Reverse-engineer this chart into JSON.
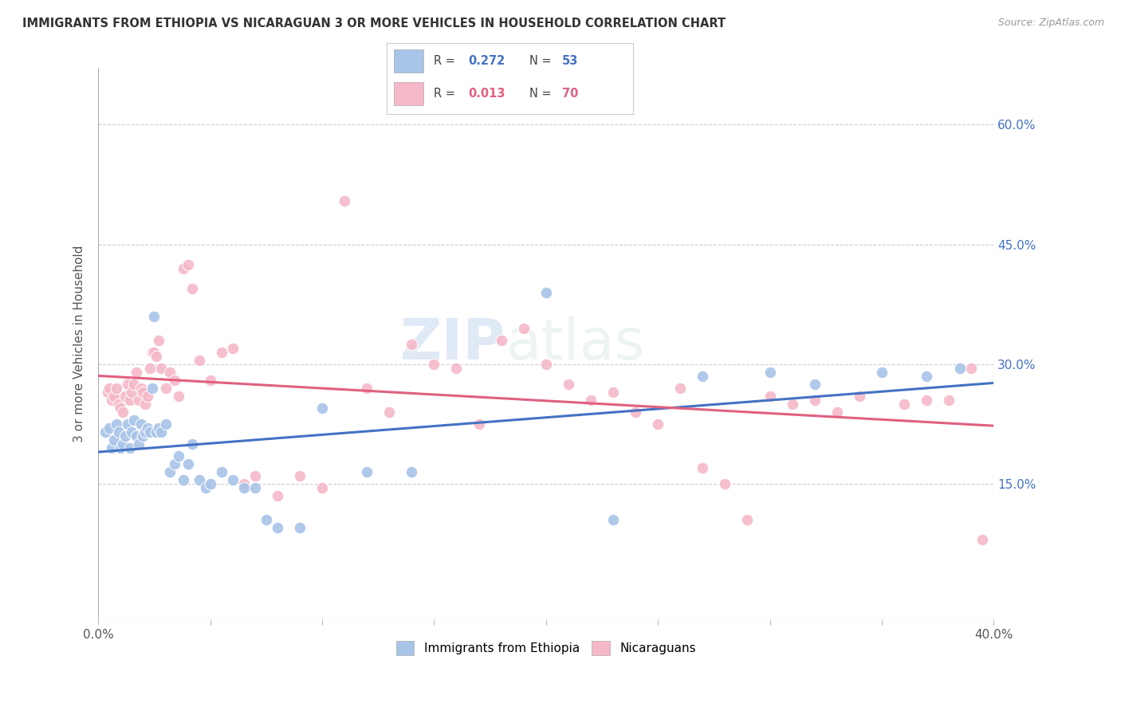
{
  "title": "IMMIGRANTS FROM ETHIOPIA VS NICARAGUAN 3 OR MORE VEHICLES IN HOUSEHOLD CORRELATION CHART",
  "source": "Source: ZipAtlas.com",
  "ylabel": "3 or more Vehicles in Household",
  "ytick_values": [
    0.15,
    0.3,
    0.45,
    0.6
  ],
  "xlim": [
    0.0,
    0.4
  ],
  "ylim": [
    -0.02,
    0.67
  ],
  "legend1_R": "0.272",
  "legend1_N": "53",
  "legend2_R": "0.013",
  "legend2_N": "70",
  "blue_color": "#a8c4e8",
  "pink_color": "#f5b8c8",
  "blue_line_color": "#4472c4",
  "pink_line_color": "#e06080",
  "watermark_zip": "ZIP",
  "watermark_atlas": "atlas",
  "legend_label1": "Immigrants from Ethiopia",
  "legend_label2": "Nicaraguans",
  "blue_x": [
    0.003,
    0.005,
    0.006,
    0.007,
    0.008,
    0.009,
    0.01,
    0.011,
    0.012,
    0.013,
    0.014,
    0.015,
    0.016,
    0.017,
    0.018,
    0.019,
    0.02,
    0.021,
    0.022,
    0.023,
    0.024,
    0.025,
    0.026,
    0.027,
    0.028,
    0.03,
    0.032,
    0.034,
    0.036,
    0.038,
    0.04,
    0.042,
    0.045,
    0.048,
    0.05,
    0.055,
    0.06,
    0.065,
    0.07,
    0.075,
    0.08,
    0.09,
    0.1,
    0.12,
    0.14,
    0.2,
    0.23,
    0.27,
    0.3,
    0.32,
    0.35,
    0.37,
    0.385
  ],
  "blue_y": [
    0.215,
    0.22,
    0.195,
    0.205,
    0.225,
    0.215,
    0.195,
    0.2,
    0.21,
    0.225,
    0.195,
    0.215,
    0.23,
    0.21,
    0.2,
    0.225,
    0.21,
    0.215,
    0.22,
    0.215,
    0.27,
    0.36,
    0.215,
    0.22,
    0.215,
    0.225,
    0.165,
    0.175,
    0.185,
    0.155,
    0.175,
    0.2,
    0.155,
    0.145,
    0.15,
    0.165,
    0.155,
    0.145,
    0.145,
    0.105,
    0.095,
    0.095,
    0.245,
    0.165,
    0.165,
    0.39,
    0.105,
    0.285,
    0.29,
    0.275,
    0.29,
    0.285,
    0.295
  ],
  "pink_x": [
    0.004,
    0.005,
    0.006,
    0.007,
    0.008,
    0.009,
    0.01,
    0.011,
    0.012,
    0.013,
    0.014,
    0.015,
    0.016,
    0.017,
    0.018,
    0.019,
    0.02,
    0.021,
    0.022,
    0.023,
    0.024,
    0.025,
    0.026,
    0.027,
    0.028,
    0.03,
    0.032,
    0.034,
    0.036,
    0.038,
    0.04,
    0.042,
    0.045,
    0.05,
    0.055,
    0.06,
    0.065,
    0.07,
    0.08,
    0.09,
    0.1,
    0.11,
    0.12,
    0.13,
    0.14,
    0.15,
    0.16,
    0.17,
    0.18,
    0.19,
    0.2,
    0.21,
    0.22,
    0.23,
    0.24,
    0.25,
    0.26,
    0.27,
    0.28,
    0.29,
    0.3,
    0.31,
    0.32,
    0.33,
    0.34,
    0.36,
    0.37,
    0.38,
    0.39,
    0.395
  ],
  "pink_y": [
    0.265,
    0.27,
    0.255,
    0.26,
    0.27,
    0.25,
    0.245,
    0.24,
    0.26,
    0.275,
    0.255,
    0.265,
    0.275,
    0.29,
    0.255,
    0.27,
    0.265,
    0.25,
    0.26,
    0.295,
    0.315,
    0.315,
    0.31,
    0.33,
    0.295,
    0.27,
    0.29,
    0.28,
    0.26,
    0.42,
    0.425,
    0.395,
    0.305,
    0.28,
    0.315,
    0.32,
    0.15,
    0.16,
    0.135,
    0.16,
    0.145,
    0.505,
    0.27,
    0.24,
    0.325,
    0.3,
    0.295,
    0.225,
    0.33,
    0.345,
    0.3,
    0.275,
    0.255,
    0.265,
    0.24,
    0.225,
    0.27,
    0.17,
    0.15,
    0.105,
    0.26,
    0.25,
    0.255,
    0.24,
    0.26,
    0.25,
    0.255,
    0.255,
    0.295,
    0.08
  ]
}
